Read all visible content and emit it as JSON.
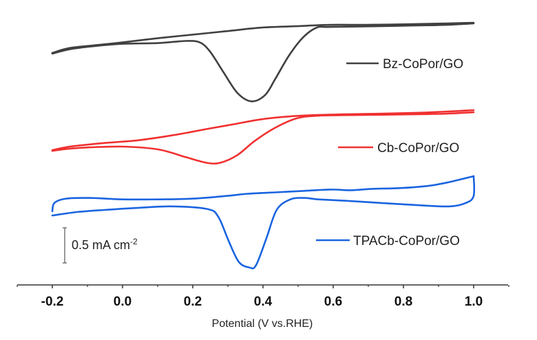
{
  "chart_data": {
    "type": "line",
    "title": "",
    "xlabel": "Potential (V vs.RHE)",
    "ylabel": "",
    "xlim": [
      -0.3,
      1.1
    ],
    "x_ticks": [
      -0.2,
      0.0,
      0.2,
      0.4,
      0.6,
      0.8,
      1.0
    ],
    "x_tick_labels": [
      "-0.2",
      "0.0",
      "0.2",
      "0.4",
      "0.6",
      "0.8",
      "1.0"
    ],
    "grid": false,
    "legend_position": "right",
    "y_note": "Curves vertically offset; current density in mA cm-2 relative to each curve's value at 1.0 V (anodic end).",
    "scale_bar": {
      "value": 0.5,
      "label": "0.5 mA cm",
      "label_sup": "-2"
    },
    "series": [
      {
        "name": "Bz-CoPor/GO",
        "color": "#404040",
        "anodic": {
          "x": [
            -0.2,
            -0.15,
            -0.055,
            0.0,
            0.102,
            0.2,
            0.298,
            0.396,
            0.494,
            0.592,
            0.69,
            0.827,
            0.925,
            1.0
          ],
          "y": [
            -0.43,
            -0.36,
            -0.31,
            -0.28,
            -0.22,
            -0.17,
            -0.12,
            -0.07,
            -0.05,
            -0.03,
            -0.03,
            -0.02,
            -0.01,
            0.0
          ]
        },
        "cathodic": {
          "x": [
            1.0,
            0.925,
            0.827,
            0.729,
            0.592,
            0.553,
            0.514,
            0.475,
            0.435,
            0.406,
            0.367,
            0.327,
            0.288,
            0.249,
            0.22,
            0.18,
            0.102,
            0.0,
            -0.094,
            -0.153,
            -0.2
          ],
          "y": [
            -0.01,
            -0.03,
            -0.04,
            -0.05,
            -0.06,
            -0.07,
            -0.21,
            -0.46,
            -0.8,
            -1.03,
            -1.12,
            -1.0,
            -0.71,
            -0.41,
            -0.28,
            -0.26,
            -0.29,
            -0.3,
            -0.34,
            -0.38,
            -0.44
          ]
        },
        "cathodic_peak": {
          "x": 0.365,
          "y": -1.12
        }
      },
      {
        "name": "Cb-CoPor/GO",
        "color": "#f03030",
        "anodic": {
          "x": [
            -0.2,
            -0.15,
            -0.055,
            0.043,
            0.141,
            0.239,
            0.318,
            0.396,
            0.475,
            0.553,
            0.631,
            0.827,
            0.925,
            1.0
          ],
          "y": [
            -0.57,
            -0.52,
            -0.47,
            -0.43,
            -0.36,
            -0.27,
            -0.2,
            -0.13,
            -0.09,
            -0.07,
            -0.06,
            -0.04,
            -0.02,
            0.0
          ]
        },
        "cathodic": {
          "x": [
            1.0,
            0.925,
            0.827,
            0.671,
            0.553,
            0.494,
            0.435,
            0.376,
            0.327,
            0.278,
            0.239,
            0.18,
            0.102,
            0.0,
            -0.094,
            -0.153,
            -0.2
          ],
          "y": [
            -0.03,
            -0.05,
            -0.06,
            -0.07,
            -0.08,
            -0.12,
            -0.25,
            -0.44,
            -0.64,
            -0.75,
            -0.75,
            -0.67,
            -0.56,
            -0.52,
            -0.53,
            -0.55,
            -0.58
          ]
        },
        "cathodic_peak": {
          "x": 0.265,
          "y": -0.76
        }
      },
      {
        "name": "TPACb-CoPor/GO",
        "color": "#1a64e0",
        "anodic": {
          "x": [
            -0.2,
            -0.194,
            -0.161,
            -0.094,
            0.0,
            0.102,
            0.2,
            0.298,
            0.357,
            0.435,
            0.514,
            0.592,
            0.651,
            0.71,
            0.788,
            0.867,
            0.925,
            1.0
          ],
          "y": [
            -0.5,
            -0.38,
            -0.32,
            -0.31,
            -0.33,
            -0.33,
            -0.32,
            -0.28,
            -0.25,
            -0.23,
            -0.21,
            -0.19,
            -0.2,
            -0.18,
            -0.17,
            -0.14,
            -0.09,
            0.0
          ]
        },
        "cathodic": {
          "x": [
            1.0,
            1.0,
            0.978,
            0.929,
            0.831,
            0.733,
            0.635,
            0.557,
            0.518,
            0.478,
            0.439,
            0.41,
            0.38,
            0.361,
            0.331,
            0.302,
            0.273,
            0.243,
            0.145,
            0.047,
            -0.051,
            -0.129,
            -0.2
          ],
          "y": [
            0.0,
            -0.28,
            -0.38,
            -0.43,
            -0.41,
            -0.38,
            -0.35,
            -0.33,
            -0.31,
            -0.33,
            -0.48,
            -0.88,
            -1.27,
            -1.3,
            -1.22,
            -0.92,
            -0.58,
            -0.47,
            -0.43,
            -0.45,
            -0.48,
            -0.51,
            -0.56
          ]
        },
        "cathodic_peak": {
          "x": 0.372,
          "y": -1.3
        }
      }
    ]
  }
}
